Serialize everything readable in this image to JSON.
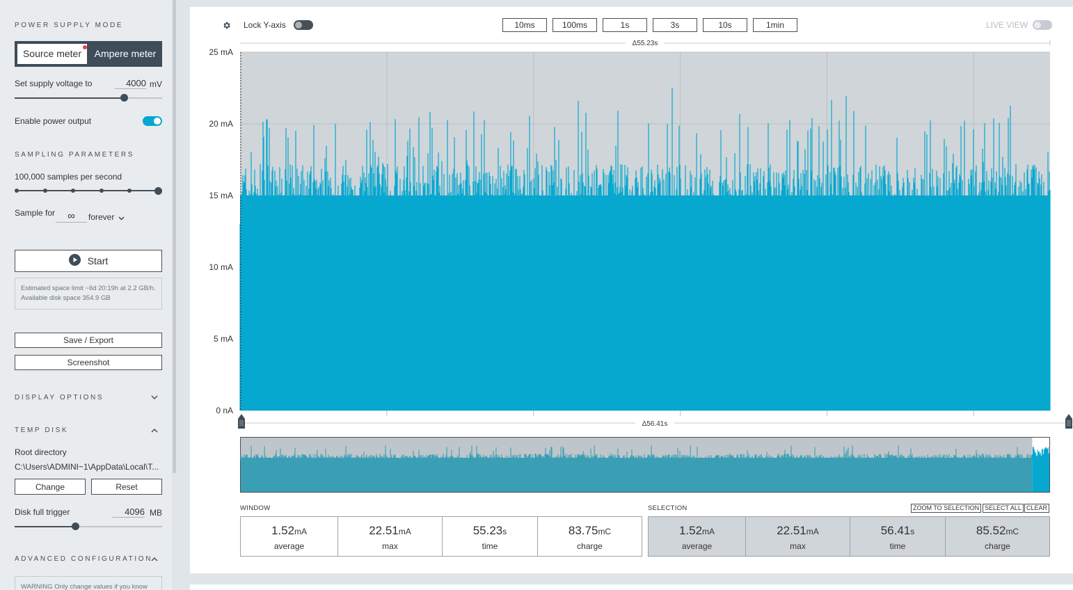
{
  "sidebar": {
    "power_supply_title": "POWER SUPPLY MODE",
    "mode_source": "Source meter",
    "mode_ampere": "Ampere meter",
    "supply_label": "Set supply voltage to",
    "supply_value": "4000",
    "supply_unit": "mV",
    "supply_level": 0.74,
    "enable_output_label": "Enable power output",
    "enable_output_on": true,
    "sampling_title": "SAMPLING PARAMETERS",
    "sample_rate_label": "100,000 samples per second",
    "sample_rate_step": 5,
    "sample_rate_steps": 6,
    "sample_for_label": "Sample for",
    "sample_for_value": "∞",
    "sample_for_unit": "forever",
    "start_label": "Start",
    "info_text": "Estimated space limit ~6d 20:19h at 2.2 GB/h. Available disk space 354.9 GB",
    "save_export_label": "Save / Export",
    "screenshot_label": "Screenshot",
    "display_title": "DISPLAY OPTIONS",
    "temp_disk_title": "TEMP DISK",
    "root_dir_label": "Root directory",
    "root_dir_value": "C:\\Users\\ADMINI~1\\AppData\\Local\\T...",
    "change_label": "Change",
    "reset_label": "Reset",
    "disk_trigger_label": "Disk full trigger",
    "disk_trigger_value": "4096",
    "disk_trigger_unit": "MB",
    "disk_trigger_level": 0.41,
    "advanced_title": "ADVANCED CONFIGURATION",
    "warning_text": "WARNING Only change values if you know"
  },
  "toolbar": {
    "lock_y_label": "Lock Y-axis",
    "lock_y_on": false,
    "live_view_label": "LIVE VIEW",
    "live_view_on": false,
    "ranges": [
      "10ms",
      "100ms",
      "1s",
      "3s",
      "10s",
      "1min"
    ]
  },
  "chart_data": {
    "type": "line",
    "ylabel": "",
    "ylim": [
      0,
      25
    ],
    "yticks": [
      "25 mA",
      "20 mA",
      "15 mA",
      "10 mA",
      "5 mA",
      "0 nA"
    ],
    "window_span": "Δ55.23s",
    "total_span": "Δ56.41s",
    "series_color": "#07a8cf",
    "baseline_approx_mA": 15,
    "peak_mA": 22.51,
    "minimap_selection_start": 0.978
  },
  "stats": {
    "window_title": "WINDOW",
    "selection_title": "SELECTION",
    "zoom_to_selection": "ZOOM TO SELECTION",
    "select_all": "SELECT ALL",
    "clear": "CLEAR",
    "window": [
      {
        "value": "1.52",
        "unit": "mA",
        "label": "average"
      },
      {
        "value": "22.51",
        "unit": "mA",
        "label": "max"
      },
      {
        "value": "55.23",
        "unit": "s",
        "label": "time"
      },
      {
        "value": "83.75",
        "unit": "mC",
        "label": "charge"
      }
    ],
    "selection": [
      {
        "value": "1.52",
        "unit": "mA",
        "label": "average"
      },
      {
        "value": "22.51",
        "unit": "mA",
        "label": "max"
      },
      {
        "value": "56.41",
        "unit": "s",
        "label": "time"
      },
      {
        "value": "85.52",
        "unit": "mC",
        "label": "charge"
      }
    ]
  },
  "colors": {
    "accent": "#07a8cf",
    "dark": "#3e4d58",
    "plot_bg": "#d0d5d9",
    "minimap_series": "#3a9fb5"
  }
}
